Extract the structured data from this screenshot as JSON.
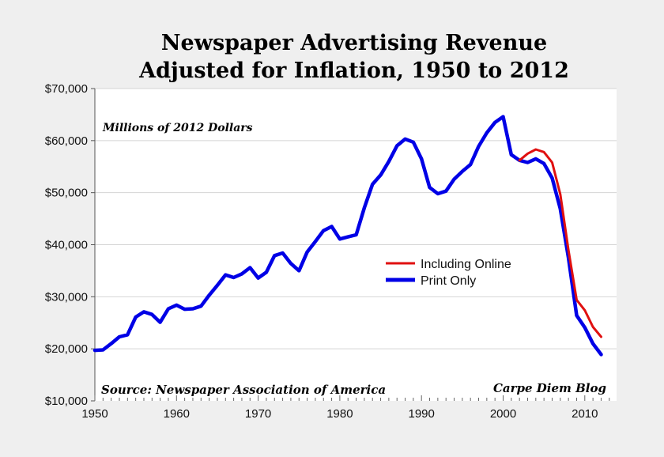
{
  "chart_data": {
    "type": "line",
    "title": [
      "Newspaper Advertising Revenue",
      "Adjusted for Inflation, 1950 to 2012"
    ],
    "subtitle": "Millions of 2012 Dollars",
    "source": "Source: Newspaper Association of America",
    "credit": "Carpe Diem Blog",
    "xlim": [
      1950,
      2013
    ],
    "ylim": [
      10000,
      70000
    ],
    "x_ticks": [
      1950,
      1960,
      1970,
      1980,
      1990,
      2000,
      2010
    ],
    "x_tick_labels": [
      "1950",
      "1960",
      "1970",
      "1980",
      "1990",
      "2000",
      "2010"
    ],
    "y_ticks": [
      10000,
      20000,
      30000,
      40000,
      50000,
      60000,
      70000
    ],
    "y_tick_labels": [
      "$10,000",
      "$20,000",
      "$30,000",
      "$40,000",
      "$50,000",
      "$60,000",
      "$70,000"
    ],
    "grid": "horizontal",
    "legend_placement": "center-right",
    "series": [
      {
        "name": "Including Online",
        "color": "#e01010",
        "x": [
          2002,
          2003,
          2004,
          2005,
          2006,
          2007,
          2008,
          2009,
          2010,
          2011,
          2012
        ],
        "values": [
          56200,
          57500,
          58300,
          57800,
          55800,
          49700,
          39000,
          29400,
          27400,
          24200,
          22300
        ]
      },
      {
        "name": "Print Only",
        "color": "#0000e6",
        "x": [
          1950,
          1951,
          1952,
          1953,
          1954,
          1955,
          1956,
          1957,
          1958,
          1959,
          1960,
          1961,
          1962,
          1963,
          1964,
          1965,
          1966,
          1967,
          1968,
          1969,
          1970,
          1971,
          1972,
          1973,
          1974,
          1975,
          1976,
          1977,
          1978,
          1979,
          1980,
          1981,
          1982,
          1983,
          1984,
          1985,
          1986,
          1987,
          1988,
          1989,
          1990,
          1991,
          1992,
          1993,
          1994,
          1995,
          1996,
          1997,
          1998,
          1999,
          2000,
          2001,
          2002,
          2003,
          2004,
          2005,
          2006,
          2007,
          2008,
          2009,
          2010,
          2011,
          2012
        ],
        "values": [
          19700,
          19800,
          21000,
          22300,
          22700,
          26100,
          27100,
          26600,
          25100,
          27700,
          28400,
          27600,
          27700,
          28200,
          30300,
          32200,
          34200,
          33700,
          34400,
          35600,
          33600,
          34700,
          37900,
          38400,
          36400,
          35000,
          38600,
          40600,
          42700,
          43500,
          41100,
          41500,
          41900,
          47100,
          51600,
          53400,
          56000,
          59000,
          60300,
          59700,
          56500,
          51000,
          49800,
          50300,
          52600,
          54100,
          55400,
          58900,
          61500,
          63500,
          64600,
          57300,
          56200,
          55800,
          56500,
          55600,
          52800,
          46900,
          37500,
          26400,
          24100,
          21000,
          18900
        ]
      }
    ]
  }
}
